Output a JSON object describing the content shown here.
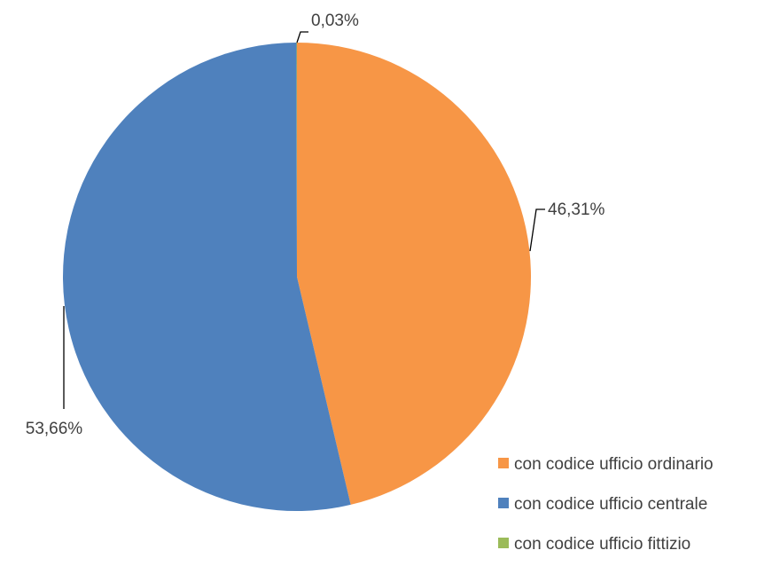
{
  "chart_data": {
    "type": "pie",
    "title": "",
    "start_angle_deg": 0,
    "direction": "clockwise",
    "legend_position": "right-bottom",
    "series": [
      {
        "name": "con codice ufficio ordinario",
        "value": 46.31,
        "label": "46,31%",
        "color": "#F79646"
      },
      {
        "name": "con codice ufficio centrale",
        "value": 53.66,
        "label": "53,66%",
        "color": "#4F81BD"
      },
      {
        "name": "con codice ufficio fittizio",
        "value": 0.03,
        "label": "0,03%",
        "color": "#9BBB59"
      }
    ]
  }
}
